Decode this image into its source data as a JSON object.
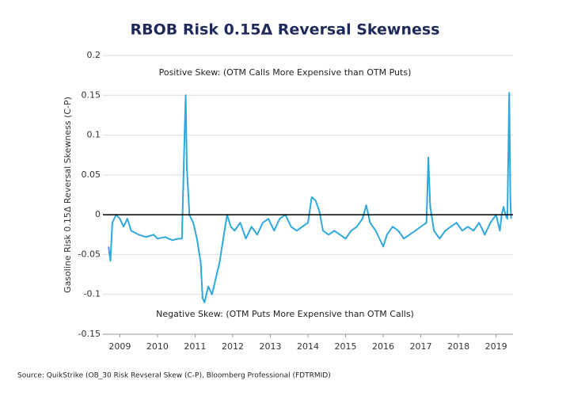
{
  "chart_data": {
    "type": "line",
    "title": "RBOB Risk 0.15Δ Reversal Skewness",
    "y_label": "Gasoline Risk 0.15Δ Reversal Skewness  (C-P)",
    "annotations": [
      "Positive Skew: (OTM Calls More Expensive than OTM Puts)",
      "Negative Skew: (OTM Puts More Expensive than OTM Calls)"
    ],
    "source": "Source: QuikStrike (OB_30 Risk Revseral Skew (C-P), Bloomberg Professional (FDTRMID)",
    "color": "#2fa8dc",
    "x": [
      2008.7,
      2008.75,
      2008.8,
      2008.9,
      2009.0,
      2009.1,
      2009.2,
      2009.3,
      2009.5,
      2009.7,
      2009.9,
      2010.0,
      2010.2,
      2010.4,
      2010.55,
      2010.65,
      2010.72,
      2010.75,
      2010.78,
      2010.85,
      2010.95,
      2011.05,
      2011.15,
      2011.2,
      2011.25,
      2011.35,
      2011.45,
      2011.55,
      2011.65,
      2011.75,
      2011.85,
      2011.95,
      2012.05,
      2012.2,
      2012.35,
      2012.5,
      2012.65,
      2012.8,
      2012.95,
      2013.1,
      2013.25,
      2013.4,
      2013.55,
      2013.7,
      2013.85,
      2014.0,
      2014.1,
      2014.2,
      2014.3,
      2014.4,
      2014.55,
      2014.7,
      2014.85,
      2015.0,
      2015.15,
      2015.3,
      2015.45,
      2015.55,
      2015.65,
      2015.8,
      2016.0,
      2016.1,
      2016.25,
      2016.4,
      2016.55,
      2016.7,
      2016.85,
      2017.0,
      2017.15,
      2017.2,
      2017.25,
      2017.35,
      2017.5,
      2017.65,
      2017.8,
      2017.95,
      2018.1,
      2018.25,
      2018.4,
      2018.55,
      2018.7,
      2018.85,
      2019.0,
      2019.1,
      2019.15,
      2019.2,
      2019.25,
      2019.3,
      2019.35,
      2019.38,
      2019.4
    ],
    "values": [
      -0.04,
      -0.058,
      -0.01,
      0.0,
      -0.005,
      -0.015,
      -0.005,
      -0.02,
      -0.025,
      -0.028,
      -0.025,
      -0.03,
      -0.028,
      -0.032,
      -0.03,
      -0.03,
      0.1,
      0.15,
      0.06,
      0.0,
      -0.01,
      -0.03,
      -0.06,
      -0.105,
      -0.11,
      -0.09,
      -0.1,
      -0.08,
      -0.06,
      -0.03,
      0.0,
      -0.015,
      -0.02,
      -0.01,
      -0.03,
      -0.015,
      -0.025,
      -0.01,
      -0.005,
      -0.02,
      -0.005,
      0.0,
      -0.015,
      -0.02,
      -0.015,
      -0.01,
      0.022,
      0.018,
      0.005,
      -0.02,
      -0.025,
      -0.02,
      -0.025,
      -0.03,
      -0.02,
      -0.015,
      -0.005,
      0.012,
      -0.01,
      -0.02,
      -0.04,
      -0.025,
      -0.015,
      -0.02,
      -0.03,
      -0.025,
      -0.02,
      -0.015,
      -0.01,
      0.072,
      0.01,
      -0.02,
      -0.03,
      -0.02,
      -0.015,
      -0.01,
      -0.02,
      -0.015,
      -0.02,
      -0.01,
      -0.025,
      -0.01,
      0.0,
      -0.02,
      0.0,
      0.01,
      0.0,
      -0.005,
      0.153,
      0.02,
      -0.005
    ],
    "xlim": [
      2008.55,
      2019.45
    ],
    "xticks": [
      2009,
      2010,
      2011,
      2012,
      2013,
      2014,
      2015,
      2016,
      2017,
      2018,
      2019
    ],
    "ylim": [
      -0.15,
      0.2
    ],
    "yticks": [
      -0.15,
      -0.1,
      -0.05,
      0,
      0.05,
      0.1,
      0.15,
      0.2
    ],
    "grid": true
  }
}
